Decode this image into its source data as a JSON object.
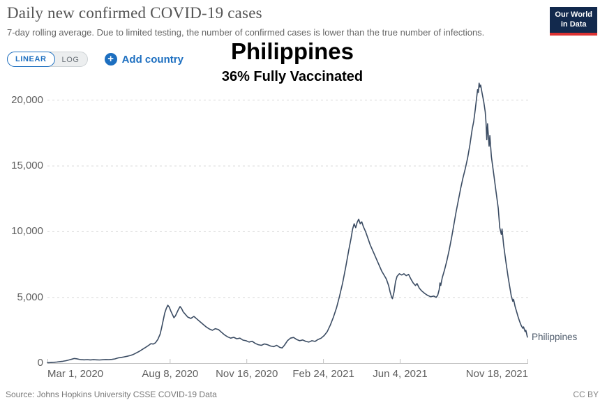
{
  "header": {
    "title": "Daily new confirmed COVID-19 cases",
    "subtitle": "7-day rolling average. Due to limited testing, the number of confirmed cases is lower than the true number of infections."
  },
  "logo": {
    "line1": "Our World",
    "line2": "in Data"
  },
  "controls": {
    "linear_label": "LINEAR",
    "log_label": "LOG",
    "plus_icon": "+",
    "add_country_label": "Add country"
  },
  "annotation": {
    "country": "Philippines",
    "vaccinated": "36% Fully Vaccinated"
  },
  "footer": {
    "source": "Source: Johns Hopkins University CSSE COVID-19 Data",
    "license": "CC BY"
  },
  "colors": {
    "accent_blue": "#1d6fc0",
    "series_line": "#3b4c63",
    "logo_navy": "#12294d",
    "logo_red": "#dc3232",
    "annotation_text": "#000000"
  },
  "chart_data": {
    "type": "line",
    "title": "Daily new confirmed COVID-19 cases",
    "series_name": "Philippines",
    "xlabel": "",
    "ylabel": "",
    "grid": "horizontal-dashed",
    "legend_position": "line-end-label",
    "ylim": [
      0,
      21500
    ],
    "x_range": [
      "Mar 1, 2020",
      "Nov 18, 2021"
    ],
    "x_unit": "days since Mar 1, 2020",
    "x_span_days": 627,
    "y_ticks": [
      {
        "value": 0,
        "label": "0"
      },
      {
        "value": 5000,
        "label": "5,000"
      },
      {
        "value": 10000,
        "label": "10,000"
      },
      {
        "value": 15000,
        "label": "15,000"
      },
      {
        "value": 20000,
        "label": "20,000"
      }
    ],
    "x_ticks": [
      {
        "day": 0,
        "label": "Mar 1, 2020"
      },
      {
        "day": 160,
        "label": "Aug 8, 2020"
      },
      {
        "day": 260,
        "label": "Nov 16, 2020"
      },
      {
        "day": 360,
        "label": "Feb 24, 2021"
      },
      {
        "day": 460,
        "label": "Jun 4, 2021"
      },
      {
        "day": 627,
        "label": "Nov 18, 2021"
      }
    ],
    "points": [
      [
        0,
        30
      ],
      [
        4,
        45
      ],
      [
        8,
        60
      ],
      [
        12,
        80
      ],
      [
        16,
        110
      ],
      [
        20,
        140
      ],
      [
        24,
        180
      ],
      [
        28,
        240
      ],
      [
        32,
        300
      ],
      [
        35,
        350
      ],
      [
        38,
        330
      ],
      [
        41,
        290
      ],
      [
        44,
        260
      ],
      [
        48,
        250
      ],
      [
        52,
        265
      ],
      [
        56,
        245
      ],
      [
        60,
        260
      ],
      [
        64,
        250
      ],
      [
        68,
        240
      ],
      [
        72,
        255
      ],
      [
        76,
        270
      ],
      [
        80,
        260
      ],
      [
        84,
        280
      ],
      [
        88,
        320
      ],
      [
        92,
        390
      ],
      [
        96,
        430
      ],
      [
        100,
        470
      ],
      [
        104,
        520
      ],
      [
        108,
        580
      ],
      [
        112,
        660
      ],
      [
        116,
        780
      ],
      [
        120,
        900
      ],
      [
        124,
        1050
      ],
      [
        128,
        1200
      ],
      [
        132,
        1350
      ],
      [
        135,
        1480
      ],
      [
        138,
        1450
      ],
      [
        141,
        1550
      ],
      [
        144,
        1800
      ],
      [
        147,
        2200
      ],
      [
        149,
        2700
      ],
      [
        151,
        3250
      ],
      [
        153,
        3800
      ],
      [
        155,
        4150
      ],
      [
        157,
        4400
      ],
      [
        159,
        4250
      ],
      [
        161,
        3950
      ],
      [
        163,
        3700
      ],
      [
        165,
        3450
      ],
      [
        167,
        3600
      ],
      [
        169,
        3850
      ],
      [
        171,
        4100
      ],
      [
        173,
        4300
      ],
      [
        175,
        4150
      ],
      [
        177,
        3900
      ],
      [
        180,
        3700
      ],
      [
        183,
        3500
      ],
      [
        187,
        3400
      ],
      [
        191,
        3550
      ],
      [
        195,
        3350
      ],
      [
        199,
        3150
      ],
      [
        203,
        2950
      ],
      [
        207,
        2750
      ],
      [
        211,
        2600
      ],
      [
        215,
        2500
      ],
      [
        219,
        2620
      ],
      [
        223,
        2550
      ],
      [
        227,
        2350
      ],
      [
        231,
        2150
      ],
      [
        235,
        2000
      ],
      [
        239,
        1900
      ],
      [
        243,
        1960
      ],
      [
        247,
        1850
      ],
      [
        251,
        1900
      ],
      [
        255,
        1750
      ],
      [
        259,
        1700
      ],
      [
        263,
        1600
      ],
      [
        267,
        1660
      ],
      [
        271,
        1500
      ],
      [
        275,
        1400
      ],
      [
        279,
        1350
      ],
      [
        283,
        1460
      ],
      [
        287,
        1400
      ],
      [
        291,
        1300
      ],
      [
        295,
        1250
      ],
      [
        299,
        1350
      ],
      [
        303,
        1200
      ],
      [
        306,
        1150
      ],
      [
        309,
        1350
      ],
      [
        313,
        1700
      ],
      [
        317,
        1900
      ],
      [
        321,
        1950
      ],
      [
        325,
        1800
      ],
      [
        329,
        1700
      ],
      [
        333,
        1760
      ],
      [
        337,
        1650
      ],
      [
        341,
        1600
      ],
      [
        345,
        1700
      ],
      [
        349,
        1650
      ],
      [
        353,
        1800
      ],
      [
        357,
        1900
      ],
      [
        361,
        2100
      ],
      [
        365,
        2400
      ],
      [
        369,
        2900
      ],
      [
        373,
        3500
      ],
      [
        377,
        4200
      ],
      [
        381,
        5100
      ],
      [
        385,
        6100
      ],
      [
        389,
        7300
      ],
      [
        393,
        8600
      ],
      [
        396,
        9500
      ],
      [
        398,
        10200
      ],
      [
        400,
        10600
      ],
      [
        402,
        10300
      ],
      [
        404,
        10700
      ],
      [
        406,
        10950
      ],
      [
        408,
        10600
      ],
      [
        410,
        10750
      ],
      [
        412,
        10400
      ],
      [
        415,
        10000
      ],
      [
        418,
        9500
      ],
      [
        421,
        9000
      ],
      [
        424,
        8600
      ],
      [
        427,
        8200
      ],
      [
        430,
        7800
      ],
      [
        433,
        7400
      ],
      [
        436,
        7000
      ],
      [
        439,
        6700
      ],
      [
        442,
        6400
      ],
      [
        445,
        5900
      ],
      [
        447,
        5400
      ],
      [
        449,
        5000
      ],
      [
        450,
        4900
      ],
      [
        452,
        5400
      ],
      [
        454,
        6200
      ],
      [
        456,
        6600
      ],
      [
        459,
        6800
      ],
      [
        462,
        6700
      ],
      [
        465,
        6800
      ],
      [
        468,
        6650
      ],
      [
        471,
        6750
      ],
      [
        474,
        6400
      ],
      [
        477,
        6100
      ],
      [
        480,
        5900
      ],
      [
        482,
        6050
      ],
      [
        485,
        5700
      ],
      [
        488,
        5500
      ],
      [
        492,
        5300
      ],
      [
        496,
        5150
      ],
      [
        500,
        5050
      ],
      [
        504,
        5100
      ],
      [
        507,
        5000
      ],
      [
        509,
        5150
      ],
      [
        511,
        5600
      ],
      [
        512,
        6100
      ],
      [
        513,
        5900
      ],
      [
        515,
        6500
      ],
      [
        518,
        7100
      ],
      [
        521,
        7800
      ],
      [
        524,
        8600
      ],
      [
        527,
        9500
      ],
      [
        530,
        10500
      ],
      [
        533,
        11500
      ],
      [
        536,
        12400
      ],
      [
        539,
        13300
      ],
      [
        542,
        14100
      ],
      [
        545,
        14800
      ],
      [
        548,
        15600
      ],
      [
        551,
        16600
      ],
      [
        554,
        17800
      ],
      [
        556,
        18400
      ],
      [
        558,
        19300
      ],
      [
        560,
        20300
      ],
      [
        561,
        20800
      ],
      [
        562,
        20600
      ],
      [
        563,
        21300
      ],
      [
        564,
        21000
      ],
      [
        565,
        21150
      ],
      [
        567,
        20500
      ],
      [
        569,
        19900
      ],
      [
        571,
        19100
      ],
      [
        572,
        18300
      ],
      [
        573,
        17000
      ],
      [
        574,
        18200
      ],
      [
        576,
        16500
      ],
      [
        577,
        17300
      ],
      [
        579,
        15700
      ],
      [
        582,
        14400
      ],
      [
        585,
        13100
      ],
      [
        588,
        11800
      ],
      [
        590,
        10300
      ],
      [
        592,
        9800
      ],
      [
        593,
        10200
      ],
      [
        595,
        9000
      ],
      [
        598,
        7700
      ],
      [
        601,
        6500
      ],
      [
        603,
        5800
      ],
      [
        605,
        5100
      ],
      [
        607,
        4700
      ],
      [
        608,
        4850
      ],
      [
        610,
        4300
      ],
      [
        612,
        3900
      ],
      [
        614,
        3500
      ],
      [
        616,
        3150
      ],
      [
        618,
        2850
      ],
      [
        620,
        2650
      ],
      [
        621,
        2750
      ],
      [
        623,
        2400
      ],
      [
        624,
        2500
      ],
      [
        626,
        1980
      ]
    ]
  }
}
